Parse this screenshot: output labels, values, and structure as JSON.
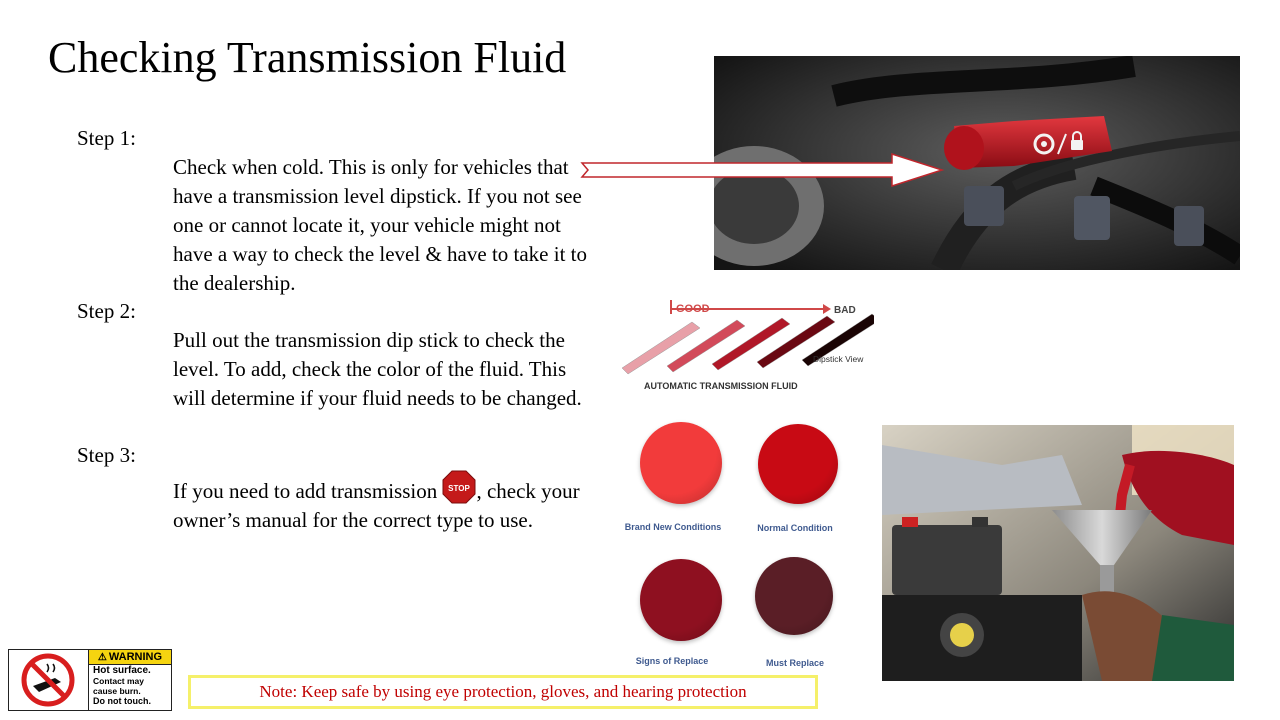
{
  "slide": {
    "title": "Checking Transmission Fluid",
    "steps": [
      {
        "label": "Step 1:",
        "text": "Check when cold. This is only for vehicles that have a transmission level dipstick. If you not see one or cannot locate it, your vehicle might not have a way to check the level & have to take it to the dealership."
      },
      {
        "label": "Step 2:",
        "text": "Pull out the transmission dip stick to check the level. To add, check the color of the fluid. This will determine if your fluid needs to be changed."
      },
      {
        "label": "Step 3:",
        "text_before": "If you need to add transmission",
        "text_after": ", check your owner’s manual for the correct type to use."
      }
    ],
    "stop_icon_text": "STOP",
    "fluid_chart": {
      "good_label": "GOOD",
      "bad_label": "BAD",
      "dipstick_label": "Dipstick View",
      "caption": "AUTOMATIC TRANSMISSION FLUID",
      "colors": [
        "#e8a0a8",
        "#d24a5a",
        "#b01828",
        "#6a0812",
        "#1a0404"
      ]
    },
    "swatches": [
      {
        "label": "Brand New Conditions",
        "color": "#f23b3b"
      },
      {
        "label": "Normal Condition",
        "color": "#c80a14"
      },
      {
        "label": "Signs of Replace",
        "color": "#8e1020"
      },
      {
        "label": "Must Replace",
        "color": "#5a1e26"
      }
    ],
    "dipstick_cap_icon": "gear-lock-icon",
    "warning_label": {
      "header": "WARNING",
      "line1": "Hot surface.",
      "line2": "Contact may cause burn.",
      "line3": "Do not touch."
    },
    "note": "Note: Keep safe by using eye protection, gloves, and hearing protection"
  }
}
